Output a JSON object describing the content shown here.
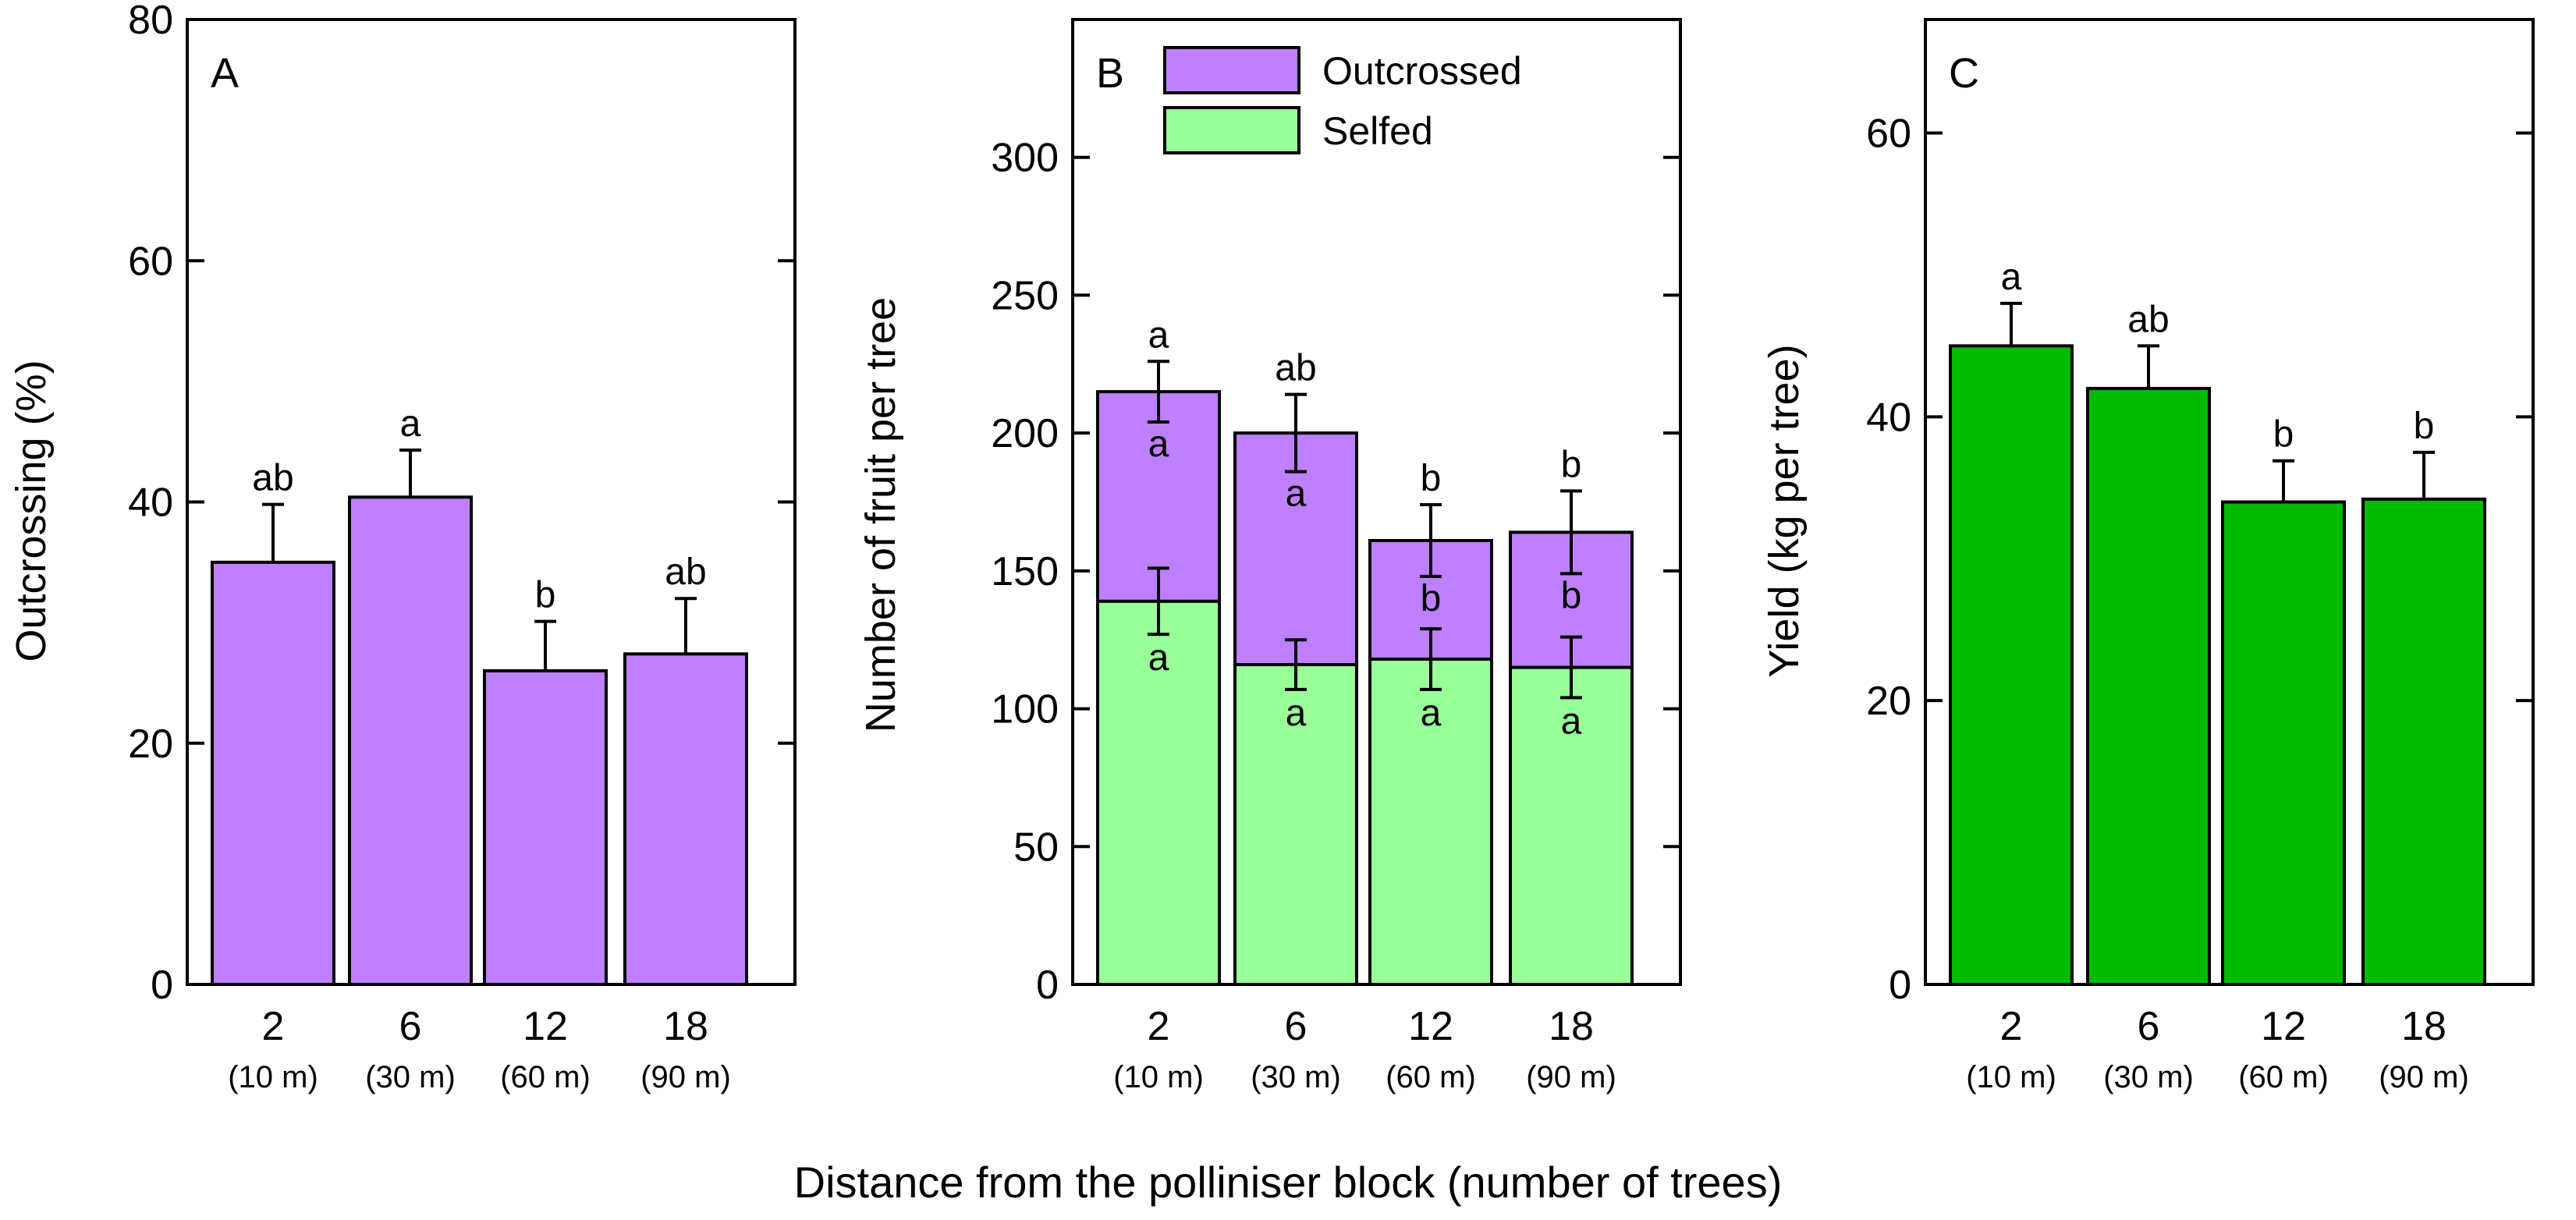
{
  "figure": {
    "shared_xlabel": "Distance from the polliniser block (number of trees)"
  },
  "chart_data": [
    {
      "type": "bar",
      "panel": "A",
      "categories": [
        "2",
        "6",
        "12",
        "18"
      ],
      "category_sublabels": [
        "(10 m)",
        "(30 m)",
        "(60 m)",
        "(90 m)"
      ],
      "values": [
        35,
        40.4,
        26,
        27.4
      ],
      "errors": [
        4.8,
        3.9,
        4.1,
        4.6
      ],
      "significance": [
        "ab",
        "a",
        "b",
        "ab"
      ],
      "ylabel": "Outcrossing (%)",
      "ylim": [
        0,
        80
      ],
      "yticks": [
        0,
        20,
        40,
        60,
        80
      ],
      "grid": false,
      "color": "#BF80FF"
    },
    {
      "type": "bar",
      "panel": "B",
      "stacked": true,
      "categories": [
        "2",
        "6",
        "12",
        "18"
      ],
      "category_sublabels": [
        "(10 m)",
        "(30 m)",
        "(60 m)",
        "(90 m)"
      ],
      "series": [
        {
          "name": "Selfed",
          "values": [
            139,
            116,
            118,
            115
          ],
          "errors": [
            12,
            9,
            11,
            11
          ],
          "significance": [
            "a",
            "a",
            "a",
            "a"
          ],
          "color": "#99FF99"
        },
        {
          "name": "Outcrossed",
          "values": [
            76,
            84,
            43,
            49
          ],
          "errors": [
            11,
            14,
            13,
            15
          ],
          "significance": [
            "a",
            "a",
            "b",
            "b"
          ],
          "color": "#BF80FF"
        }
      ],
      "total_significance": [
        "a",
        "ab",
        "b",
        "b"
      ],
      "ylabel": "Number of fruit per tree",
      "ylim": [
        0,
        350
      ],
      "yticks": [
        0,
        50,
        100,
        150,
        200,
        250,
        300
      ],
      "legend": {
        "placement": "top-center",
        "entries": [
          "Outcrossed",
          "Selfed"
        ]
      },
      "grid": false
    },
    {
      "type": "bar",
      "panel": "C",
      "categories": [
        "2",
        "6",
        "12",
        "18"
      ],
      "category_sublabels": [
        "(10 m)",
        "(30 m)",
        "(60 m)",
        "(90 m)"
      ],
      "values": [
        45,
        42,
        34,
        34.2
      ],
      "errors": [
        3,
        3,
        2.9,
        3.3
      ],
      "significance": [
        "a",
        "ab",
        "b",
        "b"
      ],
      "ylabel": "Yield (kg per tree)",
      "ylim": [
        0,
        68
      ],
      "yticks": [
        0,
        20,
        40,
        60
      ],
      "grid": false,
      "color": "#00BB00"
    }
  ]
}
